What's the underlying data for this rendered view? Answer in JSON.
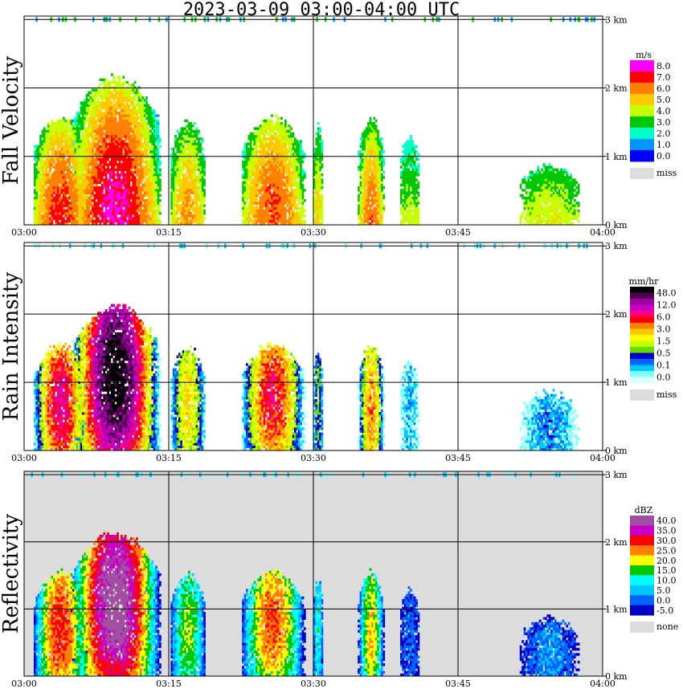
{
  "title": "2023-03-09  03:00-04:00 UTC",
  "x_ticks": [
    "03:00",
    "03:15",
    "03:30",
    "03:45",
    "04:00"
  ],
  "y_ticks": [
    "0 km",
    "1 km",
    "2 km",
    "3 km"
  ],
  "chart_data": [
    {
      "type": "heatmap",
      "ylabel": "Fall Velocity",
      "x_range": [
        "03:00",
        "04:00"
      ],
      "y_range_km": [
        0,
        3.0
      ],
      "background": "#ffffff",
      "legend": {
        "unit": "m/s",
        "labels": [
          "8.0",
          "7.0",
          "6.0",
          "5.0",
          "4.0",
          "3.0",
          "2.0",
          "1.0",
          "0.0"
        ],
        "colors": [
          "#ff00ff",
          "#ff0000",
          "#ff8000",
          "#ffc800",
          "#c8ff00",
          "#00c800",
          "#00ffc8",
          "#0096ff",
          "#0000ff"
        ],
        "missing_label": "miss",
        "missing_color": "#dcdcdc"
      }
    },
    {
      "type": "heatmap",
      "ylabel": "Rain Intensity",
      "x_range": [
        "03:00",
        "04:00"
      ],
      "y_range_km": [
        0,
        3.0
      ],
      "background": "#ffffff",
      "legend": {
        "unit": "mm/hr",
        "labels": [
          "48.0",
          "12.0",
          "6.0",
          "3.0",
          "1.5",
          "0.5",
          "0.1",
          "0.0"
        ],
        "colors": [
          "#000000",
          "#500050",
          "#a000a0",
          "#c800c8",
          "#ff0080",
          "#ff0000",
          "#ff8000",
          "#ffc800",
          "#ffff00",
          "#c8ff00",
          "#64dc00",
          "#0000c8",
          "#0064ff",
          "#00c8ff",
          "#80ffff",
          "#dcffff"
        ],
        "missing_label": "miss",
        "missing_color": "#dcdcdc"
      }
    },
    {
      "type": "heatmap",
      "ylabel": "Reflectivity",
      "x_range": [
        "03:00",
        "04:00"
      ],
      "y_range_km": [
        0,
        3.0
      ],
      "background": "#dcdcdc",
      "legend": {
        "unit": "dBZ",
        "labels": [
          "40.0",
          "35.0",
          "30.0",
          "25.0",
          "20.0",
          "15.0",
          "10.0",
          "5.0",
          "0.0",
          "-5.0"
        ],
        "colors": [
          "#a050a0",
          "#c800c8",
          "#ff0000",
          "#ff8000",
          "#ffff00",
          "#00c800",
          "#00ffff",
          "#00c8ff",
          "#0064ff",
          "#0000c8"
        ],
        "missing_label": "none",
        "missing_color": "#dcdcdc"
      }
    }
  ]
}
